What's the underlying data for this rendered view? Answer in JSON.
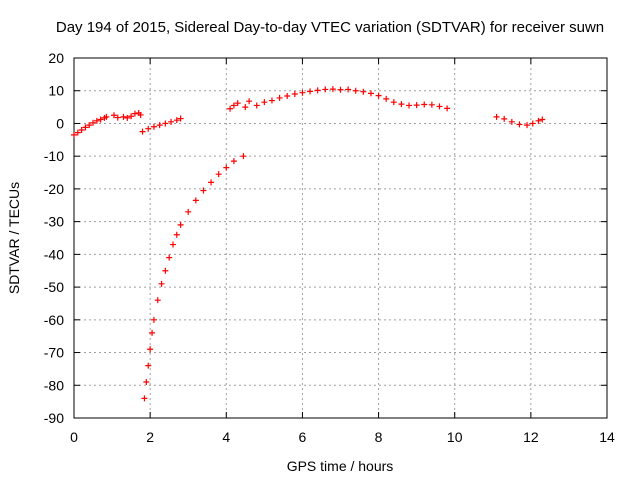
{
  "chart_data": {
    "type": "scatter",
    "title": "Day 194 of 2015, Sidereal Day-to-day VTEC variation (SDTVAR) for receiver suwn",
    "xlabel": "GPS time / hours",
    "ylabel": "SDTVAR / TECUs",
    "xlim": [
      0,
      14
    ],
    "ylim": [
      -90,
      20
    ],
    "x_ticks": [
      0,
      2,
      4,
      6,
      8,
      10,
      12,
      14
    ],
    "y_ticks": [
      20,
      10,
      0,
      -10,
      -20,
      -30,
      -40,
      -50,
      -60,
      -70,
      -80,
      -90
    ],
    "grid": true,
    "marker": "plus",
    "color": "#ff0000",
    "series": [
      {
        "points": [
          [
            0.0,
            -3.5
          ],
          [
            0.1,
            -2.8
          ],
          [
            0.2,
            -2.0
          ],
          [
            0.3,
            -1.2
          ],
          [
            0.4,
            -0.5
          ],
          [
            0.5,
            0.2
          ],
          [
            0.6,
            0.8
          ],
          [
            0.7,
            1.2
          ],
          [
            0.8,
            1.7
          ],
          [
            0.85,
            2.0
          ],
          [
            1.05,
            2.5
          ],
          [
            1.15,
            1.8
          ],
          [
            1.3,
            2.0
          ],
          [
            1.4,
            1.7
          ],
          [
            1.5,
            2.2
          ],
          [
            1.6,
            3.0
          ],
          [
            1.7,
            3.2
          ],
          [
            1.75,
            2.6
          ],
          [
            1.8,
            -2.5
          ],
          [
            1.95,
            -1.6
          ],
          [
            2.1,
            -1.0
          ],
          [
            2.25,
            -0.5
          ],
          [
            2.4,
            0.0
          ],
          [
            2.55,
            0.5
          ],
          [
            2.7,
            1.0
          ],
          [
            2.8,
            1.5
          ],
          [
            1.85,
            -84
          ],
          [
            1.9,
            -79
          ],
          [
            1.95,
            -74
          ],
          [
            2.0,
            -69
          ],
          [
            2.05,
            -64
          ],
          [
            2.1,
            -60
          ],
          [
            2.2,
            -54
          ],
          [
            2.3,
            -49
          ],
          [
            2.4,
            -45
          ],
          [
            2.5,
            -41
          ],
          [
            2.6,
            -37
          ],
          [
            2.7,
            -34
          ],
          [
            2.8,
            -31
          ],
          [
            3.0,
            -27
          ],
          [
            3.2,
            -23.5
          ],
          [
            3.4,
            -20.5
          ],
          [
            3.6,
            -18
          ],
          [
            3.8,
            -15.5
          ],
          [
            4.0,
            -13.5
          ],
          [
            4.2,
            -11.5
          ],
          [
            4.45,
            -10
          ],
          [
            4.1,
            4.5
          ],
          [
            4.2,
            5.5
          ],
          [
            4.3,
            6.2
          ],
          [
            4.5,
            5.0
          ],
          [
            4.6,
            6.8
          ],
          [
            4.8,
            5.5
          ],
          [
            5.0,
            6.5
          ],
          [
            5.2,
            7.0
          ],
          [
            5.4,
            7.8
          ],
          [
            5.6,
            8.4
          ],
          [
            5.8,
            9.0
          ],
          [
            6.0,
            9.4
          ],
          [
            6.2,
            9.8
          ],
          [
            6.4,
            10.1
          ],
          [
            6.6,
            10.4
          ],
          [
            6.8,
            10.5
          ],
          [
            7.0,
            10.3
          ],
          [
            7.2,
            10.4
          ],
          [
            7.4,
            10.0
          ],
          [
            7.6,
            9.7
          ],
          [
            7.8,
            9.2
          ],
          [
            8.0,
            8.5
          ],
          [
            8.2,
            7.5
          ],
          [
            8.4,
            6.5
          ],
          [
            8.6,
            5.9
          ],
          [
            8.8,
            5.5
          ],
          [
            9.0,
            5.6
          ],
          [
            9.2,
            5.8
          ],
          [
            9.4,
            5.7
          ],
          [
            9.6,
            5.2
          ],
          [
            9.8,
            4.6
          ],
          [
            11.1,
            2.0
          ],
          [
            11.3,
            1.4
          ],
          [
            11.5,
            0.5
          ],
          [
            11.7,
            -0.3
          ],
          [
            11.9,
            -0.5
          ],
          [
            12.05,
            0.0
          ],
          [
            12.2,
            0.8
          ],
          [
            12.3,
            1.2
          ]
        ]
      }
    ]
  }
}
